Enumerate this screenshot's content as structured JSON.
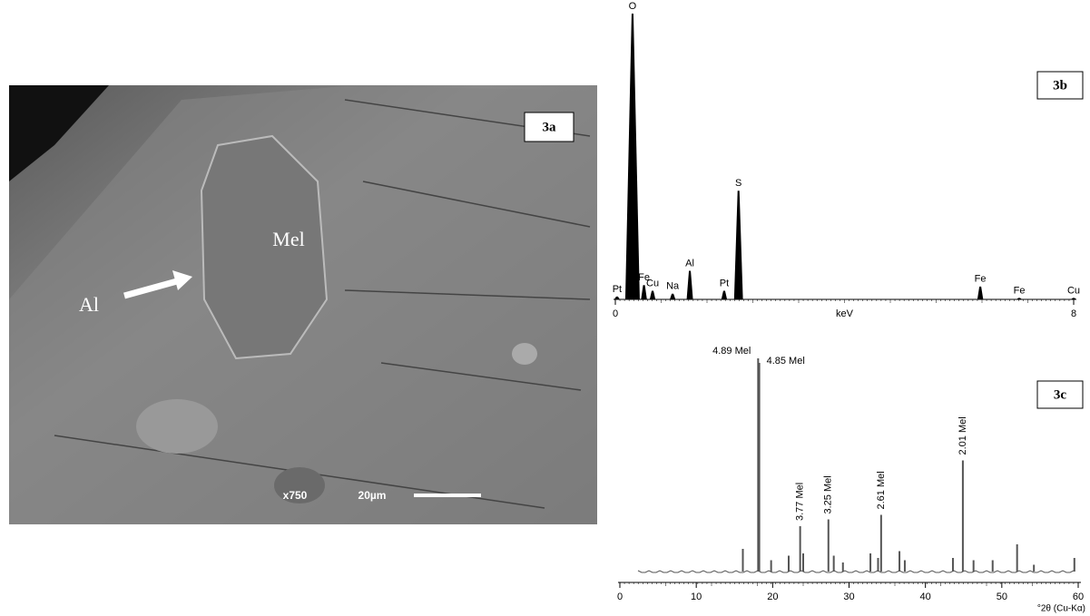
{
  "image_panel": {
    "panel_label": "3a",
    "labels": [
      "Mel",
      "Al"
    ],
    "magnification": "x750",
    "scale": "20µm"
  },
  "chart_data": [
    {
      "type": "spectrum",
      "panel_label": "3b",
      "x_label": "keV",
      "x": [
        0.03,
        0.3,
        0.5,
        0.65,
        1.0,
        1.3,
        1.9,
        2.15,
        6.37,
        7.05,
        8.0
      ],
      "values": [
        1,
        100,
        5,
        3,
        2,
        10,
        3,
        38,
        4.5,
        0.5,
        0.5
      ],
      "labels": [
        "Pt",
        "O",
        "Fe",
        "Cu",
        "Na",
        "Al",
        "Pt",
        "S",
        "Fe",
        "Fe",
        "Cu"
      ],
      "color": "#000000",
      "xlim": [
        0,
        8
      ],
      "xticks": [
        0,
        8
      ],
      "ylim": [
        0,
        100
      ]
    },
    {
      "type": "diffractogram",
      "panel_label": "3c",
      "x_label": "°2θ (Cu-Kα)",
      "x": [
        16.1,
        18.1,
        18.25,
        19.8,
        22.1,
        23.6,
        24.0,
        27.3,
        28.0,
        29.2,
        32.8,
        33.8,
        34.2,
        36.6,
        37.3,
        43.6,
        44.9,
        46.3,
        48.8,
        52.0,
        54.2,
        59.5
      ],
      "values": [
        10,
        94,
        92,
        5,
        7,
        20,
        8,
        23,
        7,
        4,
        8,
        6,
        25,
        9,
        5,
        6,
        49,
        5,
        5,
        12,
        3,
        6
      ],
      "labels": [
        null,
        "4.89 Mel",
        "4.85 Mel",
        null,
        null,
        "3.77 Mel",
        null,
        "3.25 Mel",
        null,
        null,
        null,
        null,
        "2.61 Mel",
        null,
        null,
        null,
        "2.01 Mel",
        null,
        null,
        null,
        null,
        null
      ],
      "color": "#555555",
      "xlim": [
        0,
        60
      ],
      "xticks": [
        0,
        10,
        20,
        30,
        40,
        50,
        60
      ],
      "ylim": [
        0,
        100
      ]
    }
  ]
}
